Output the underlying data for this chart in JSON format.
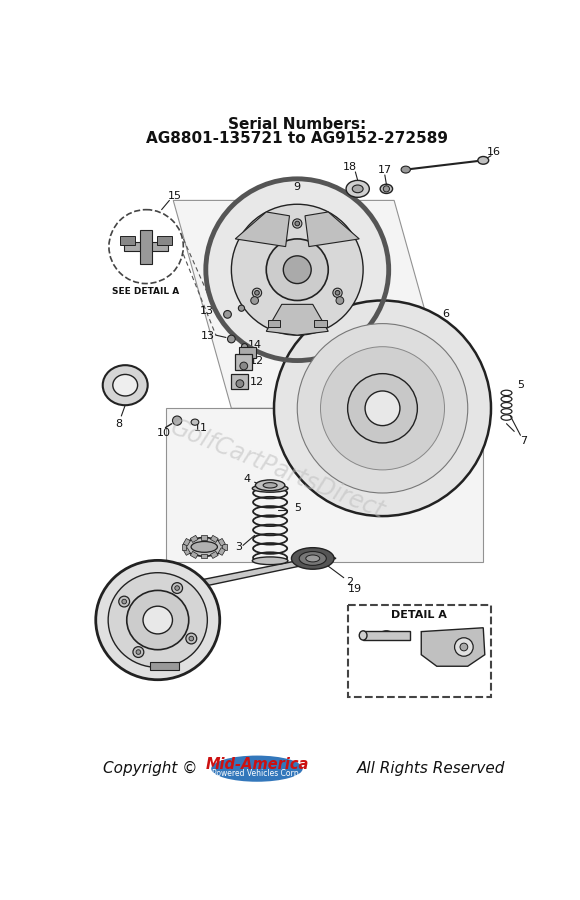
{
  "title_line1": "Serial Numbers:",
  "title_line2": "AG8801-135721 to AG9152-272589",
  "watermark": "GolfCartPartsDirect",
  "copyright_text": "Copyright ©",
  "copyright_brand": "Mid-America",
  "copyright_sub": "Powered Vehicles Corp.",
  "copyright_end": "All Rights Reserved",
  "bg_color": "#ffffff",
  "line_color": "#222222",
  "gray_fill": "#d8d8d8",
  "light_gray": "#eeeeee",
  "mid_gray": "#b8b8b8",
  "dark_gray": "#888888",
  "watermark_color": "#bbbbbb"
}
